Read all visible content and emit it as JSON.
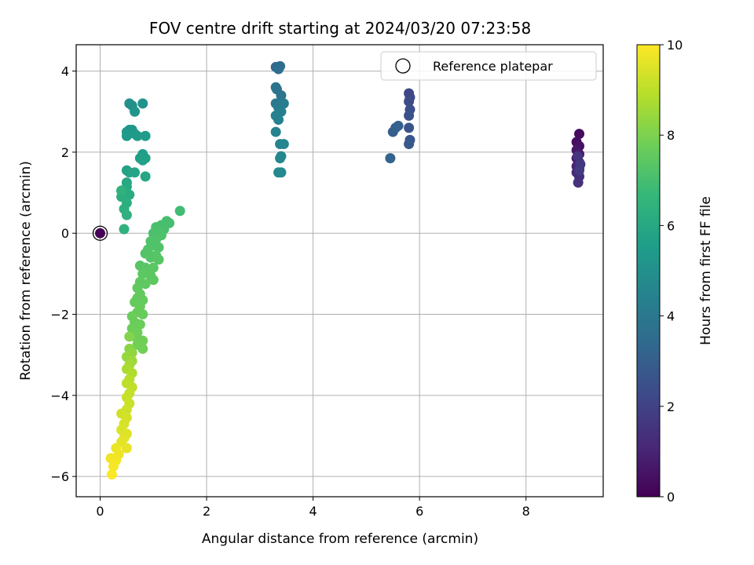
{
  "chart_data": {
    "type": "scatter",
    "title": "FOV centre drift starting at 2024/03/20 07:23:58",
    "xlabel": "Angular distance from reference (arcmin)",
    "ylabel": "Rotation from reference (arcmin)",
    "xlim": [
      -0.45,
      9.45
    ],
    "ylim": [
      -6.5,
      4.65
    ],
    "xticks": [
      0,
      2,
      4,
      6,
      8
    ],
    "yticks": [
      -6,
      -4,
      -2,
      0,
      2,
      4
    ],
    "xtick_labels": [
      "0",
      "2",
      "4",
      "6",
      "8"
    ],
    "ytick_labels": [
      "−6",
      "−4",
      "−2",
      "0",
      "2",
      "4"
    ],
    "grid": true,
    "legend": {
      "position": "top-right",
      "entries": [
        "Reference platepar"
      ]
    },
    "reference_point": {
      "x": 0,
      "y": 0,
      "hours": 0
    },
    "colorbar": {
      "label": "Hours from first FF file",
      "min": 0,
      "max": 10,
      "ticks": [
        0,
        2,
        4,
        6,
        8,
        10
      ],
      "tick_labels": [
        "0",
        "2",
        "4",
        "6",
        "8",
        "10"
      ],
      "colormap": [
        "#440154",
        "#482878",
        "#3e4989",
        "#31688e",
        "#26828e",
        "#1f9e89",
        "#35b779",
        "#6ece58",
        "#b5de2b",
        "#fde725"
      ]
    },
    "points": [
      [
        0.0,
        0.0,
        0.05
      ],
      [
        9.0,
        2.45,
        0.3
      ],
      [
        8.95,
        2.25,
        0.4
      ],
      [
        9.0,
        2.15,
        0.5
      ],
      [
        8.95,
        2.05,
        0.6
      ],
      [
        9.0,
        1.95,
        0.7
      ],
      [
        8.95,
        1.85,
        0.8
      ],
      [
        9.0,
        1.75,
        0.9
      ],
      [
        8.95,
        1.65,
        1.0
      ],
      [
        9.0,
        1.6,
        1.1
      ],
      [
        8.95,
        1.5,
        1.2
      ],
      [
        9.0,
        1.4,
        1.3
      ],
      [
        8.98,
        1.25,
        1.4
      ],
      [
        8.97,
        1.9,
        1.5
      ],
      [
        9.02,
        1.7,
        1.6
      ],
      [
        9.0,
        1.55,
        1.75
      ],
      [
        5.8,
        3.45,
        2.1
      ],
      [
        5.82,
        3.35,
        2.2
      ],
      [
        5.8,
        3.25,
        2.3
      ],
      [
        5.82,
        3.05,
        2.4
      ],
      [
        5.8,
        2.9,
        2.5
      ],
      [
        5.8,
        2.6,
        2.6
      ],
      [
        5.82,
        2.3,
        2.7
      ],
      [
        5.8,
        2.2,
        2.8
      ],
      [
        5.55,
        2.6,
        2.9
      ],
      [
        5.5,
        2.5,
        3.0
      ],
      [
        5.6,
        2.65,
        3.1
      ],
      [
        5.45,
        1.85,
        3.2
      ],
      [
        3.3,
        4.1,
        3.4
      ],
      [
        3.38,
        4.12,
        3.5
      ],
      [
        3.35,
        4.05,
        3.6
      ],
      [
        3.3,
        3.6,
        3.7
      ],
      [
        3.32,
        3.55,
        3.8
      ],
      [
        3.4,
        3.4,
        3.9
      ],
      [
        3.3,
        3.2,
        4.0
      ],
      [
        3.35,
        3.1,
        4.1
      ],
      [
        3.45,
        3.2,
        4.2
      ],
      [
        3.4,
        3.0,
        4.3
      ],
      [
        3.3,
        2.9,
        4.35
      ],
      [
        3.35,
        2.8,
        4.4
      ],
      [
        3.3,
        2.5,
        4.45
      ],
      [
        3.38,
        2.2,
        4.5
      ],
      [
        3.45,
        2.2,
        4.55
      ],
      [
        3.4,
        1.9,
        4.6
      ],
      [
        3.38,
        1.85,
        4.65
      ],
      [
        3.35,
        1.5,
        4.7
      ],
      [
        3.4,
        1.5,
        4.75
      ],
      [
        0.55,
        3.2,
        5.0
      ],
      [
        0.6,
        3.15,
        5.05
      ],
      [
        0.8,
        3.2,
        5.1
      ],
      [
        0.65,
        3.0,
        5.15
      ],
      [
        0.55,
        2.55,
        5.2
      ],
      [
        0.6,
        2.55,
        5.25
      ],
      [
        0.5,
        2.5,
        5.3
      ],
      [
        0.65,
        2.45,
        5.35
      ],
      [
        0.5,
        2.4,
        5.4
      ],
      [
        0.7,
        2.4,
        5.45
      ],
      [
        0.85,
        2.4,
        5.5
      ],
      [
        0.8,
        1.95,
        5.55
      ],
      [
        0.75,
        1.85,
        5.6
      ],
      [
        0.85,
        1.85,
        5.65
      ],
      [
        0.8,
        1.8,
        5.7
      ],
      [
        0.5,
        1.55,
        5.75
      ],
      [
        0.55,
        1.5,
        5.8
      ],
      [
        0.65,
        1.5,
        5.85
      ],
      [
        0.85,
        1.4,
        5.9
      ],
      [
        0.5,
        1.25,
        5.95
      ],
      [
        0.5,
        1.15,
        6.0
      ],
      [
        0.4,
        1.05,
        6.05
      ],
      [
        0.5,
        1.0,
        6.1
      ],
      [
        0.55,
        0.95,
        6.15
      ],
      [
        0.4,
        0.9,
        6.2
      ],
      [
        0.5,
        0.75,
        6.25
      ],
      [
        0.45,
        0.6,
        6.3
      ],
      [
        0.5,
        0.45,
        6.35
      ],
      [
        0.45,
        0.1,
        6.4
      ],
      [
        0.4,
        1.05,
        6.45
      ],
      [
        1.5,
        0.55,
        6.9
      ],
      [
        1.25,
        0.3,
        7.0
      ],
      [
        1.3,
        0.25,
        7.02
      ],
      [
        1.15,
        0.2,
        7.04
      ],
      [
        1.2,
        0.1,
        7.06
      ],
      [
        1.05,
        0.15,
        7.08
      ],
      [
        1.1,
        0.0,
        7.1
      ],
      [
        1.0,
        0.0,
        7.12
      ],
      [
        1.15,
        -0.05,
        7.14
      ],
      [
        1.05,
        -0.15,
        7.16
      ],
      [
        0.95,
        -0.2,
        7.18
      ],
      [
        1.0,
        -0.3,
        7.2
      ],
      [
        1.1,
        -0.35,
        7.22
      ],
      [
        0.9,
        -0.4,
        7.24
      ],
      [
        0.85,
        -0.5,
        7.26
      ],
      [
        1.05,
        -0.55,
        7.28
      ],
      [
        0.95,
        -0.6,
        7.3
      ],
      [
        1.1,
        -0.65,
        7.32
      ],
      [
        0.75,
        -0.8,
        7.34
      ],
      [
        0.85,
        -0.85,
        7.36
      ],
      [
        1.0,
        -0.85,
        7.38
      ],
      [
        0.9,
        -0.95,
        7.4
      ],
      [
        0.8,
        -1.0,
        7.42
      ],
      [
        0.95,
        -1.05,
        7.44
      ],
      [
        1.0,
        -1.15,
        7.46
      ],
      [
        0.75,
        -1.2,
        7.48
      ],
      [
        0.85,
        -1.25,
        7.5
      ],
      [
        0.7,
        -1.35,
        7.52
      ],
      [
        0.75,
        -1.5,
        7.54
      ],
      [
        0.7,
        -1.6,
        7.56
      ],
      [
        0.8,
        -1.65,
        7.58
      ],
      [
        0.65,
        -1.7,
        7.6
      ],
      [
        0.75,
        -1.8,
        7.62
      ],
      [
        0.7,
        -1.95,
        7.64
      ],
      [
        0.8,
        -2.0,
        7.66
      ],
      [
        0.6,
        -2.05,
        7.68
      ],
      [
        0.65,
        -2.2,
        7.7
      ],
      [
        0.75,
        -2.25,
        7.72
      ],
      [
        0.6,
        -2.35,
        7.74
      ],
      [
        0.7,
        -2.45,
        7.76
      ],
      [
        0.65,
        -2.55,
        7.78
      ],
      [
        0.8,
        -2.65,
        7.8
      ],
      [
        0.7,
        -2.75,
        7.82
      ],
      [
        0.8,
        -2.85,
        7.84
      ],
      [
        0.55,
        -2.55,
        8.1
      ],
      [
        0.55,
        -2.85,
        8.2
      ],
      [
        0.6,
        -2.95,
        8.3
      ],
      [
        0.5,
        -3.05,
        8.4
      ],
      [
        0.6,
        -3.15,
        8.5
      ],
      [
        0.55,
        -3.25,
        8.6
      ],
      [
        0.5,
        -3.35,
        8.7
      ],
      [
        0.6,
        -3.45,
        8.8
      ],
      [
        0.55,
        -3.6,
        8.9
      ],
      [
        0.5,
        -3.7,
        9.0
      ],
      [
        0.6,
        -3.8,
        9.05
      ],
      [
        0.55,
        -3.95,
        9.1
      ],
      [
        0.5,
        -4.05,
        9.15
      ],
      [
        0.55,
        -4.2,
        9.2
      ],
      [
        0.5,
        -4.35,
        9.25
      ],
      [
        0.4,
        -4.45,
        9.3
      ],
      [
        0.5,
        -4.55,
        9.35
      ],
      [
        0.45,
        -4.7,
        9.4
      ],
      [
        0.4,
        -4.85,
        9.45
      ],
      [
        0.5,
        -4.95,
        9.5
      ],
      [
        0.45,
        -5.05,
        9.55
      ],
      [
        0.4,
        -5.15,
        9.6
      ],
      [
        0.5,
        -5.3,
        9.65
      ],
      [
        0.3,
        -5.3,
        9.7
      ],
      [
        0.35,
        -5.45,
        9.75
      ],
      [
        0.2,
        -5.55,
        9.8
      ],
      [
        0.3,
        -5.6,
        9.85
      ],
      [
        0.25,
        -5.75,
        9.9
      ],
      [
        0.22,
        -5.95,
        9.95
      ]
    ]
  }
}
